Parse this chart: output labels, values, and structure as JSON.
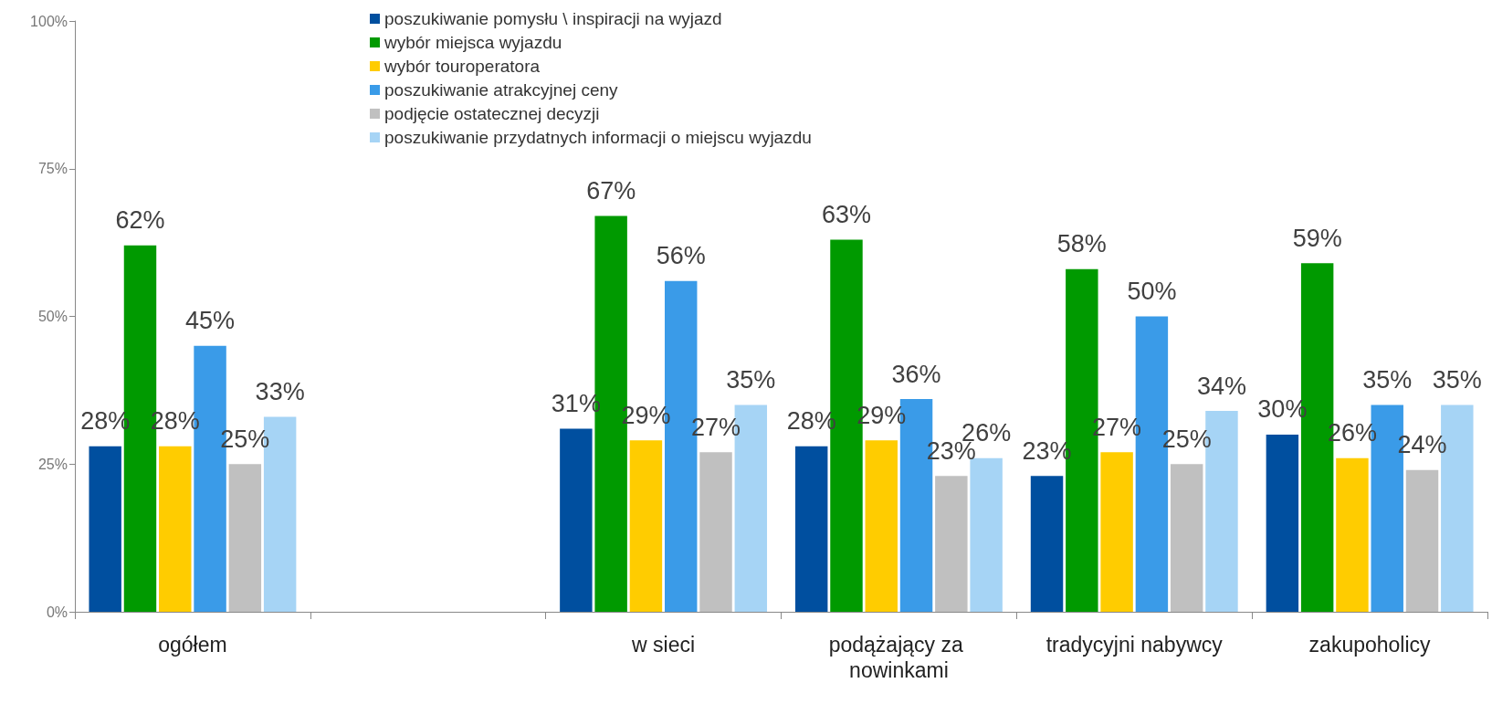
{
  "chart_data": {
    "type": "bar",
    "categories": [
      "ogółem",
      null,
      "w sieci",
      "podążający za nowinkami",
      "tradycyjni nabywcy",
      "zakupoholicy"
    ],
    "ylim": [
      0,
      100
    ],
    "yticks": [
      {
        "value": 0,
        "label": "0%"
      },
      {
        "value": 25,
        "label": "25%"
      },
      {
        "value": 50,
        "label": "50%"
      },
      {
        "value": 75,
        "label": "75%"
      },
      {
        "value": 100,
        "label": "100%"
      }
    ],
    "grid": false,
    "legend": "top",
    "series": [
      {
        "name": "poszukiwanie pomysłu \\ inspiracji na wyjazd",
        "color": "#004f9f",
        "values": [
          28,
          null,
          31,
          28,
          23,
          30
        ],
        "value_labels": [
          "28%",
          null,
          "31%",
          "28%",
          "23%",
          "30%"
        ]
      },
      {
        "name": "wybór miejsca wyjazdu",
        "color": "#009a00",
        "values": [
          62,
          null,
          67,
          63,
          58,
          59
        ],
        "value_labels": [
          "62%",
          null,
          "67%",
          "63%",
          "58%",
          "59%"
        ]
      },
      {
        "name": "wybór touroperatora",
        "color": "#ffcc00",
        "values": [
          28,
          null,
          29,
          29,
          27,
          26
        ],
        "value_labels": [
          "28%",
          null,
          "29%",
          "29%",
          "27%",
          "26%"
        ]
      },
      {
        "name": "poszukiwanie atrakcyjnej ceny",
        "color": "#3a9be8",
        "values": [
          45,
          null,
          56,
          36,
          50,
          35
        ],
        "value_labels": [
          "45%",
          null,
          "56%",
          "36%",
          "50%",
          "35%"
        ]
      },
      {
        "name": "podjęcie ostatecznej decyzji",
        "color": "#c0c0c0",
        "values": [
          25,
          null,
          27,
          23,
          25,
          24
        ],
        "value_labels": [
          "25%",
          null,
          "27%",
          "23%",
          "25%",
          "24%"
        ]
      },
      {
        "name": "poszukiwanie przydatnych informacji o miejscu wyjazdu",
        "color": "#a6d4f5",
        "values": [
          33,
          null,
          35,
          26,
          34,
          35
        ],
        "value_labels": [
          "33%",
          null,
          "35%",
          "26%",
          "34%",
          "35%"
        ]
      }
    ]
  }
}
